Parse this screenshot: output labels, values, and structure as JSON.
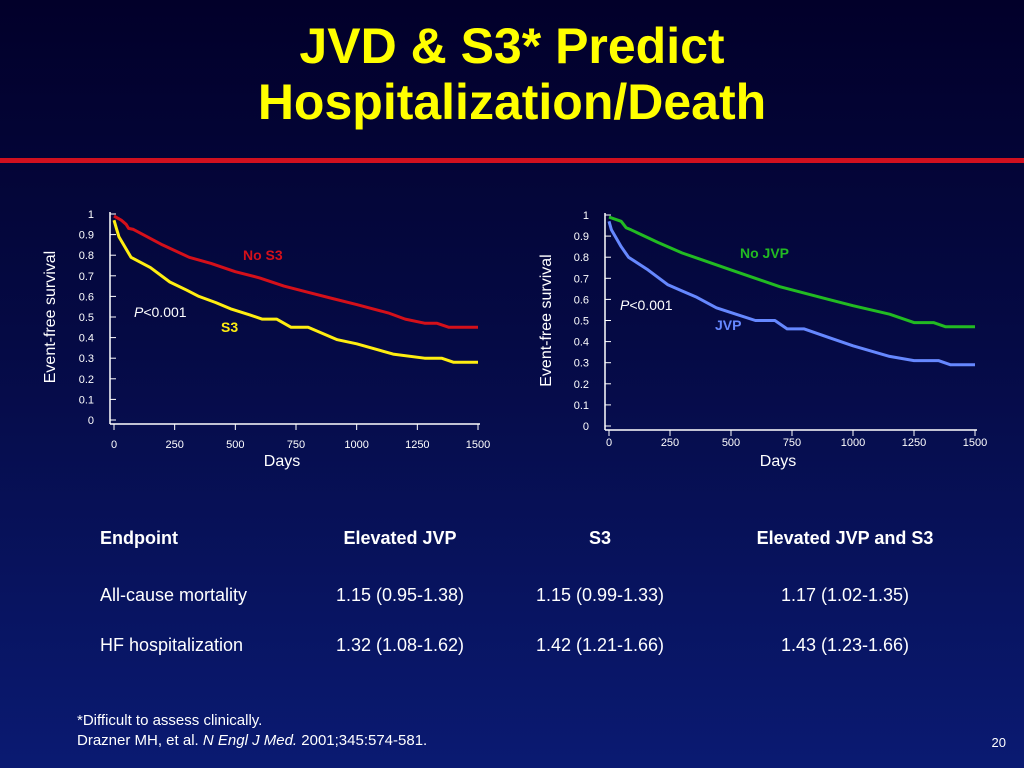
{
  "title_line1": "JVD & S3* Predict",
  "title_line2": "Hospitalization/Death",
  "chart_data": [
    {
      "type": "line",
      "xlabel": "Days",
      "ylabel": "Event-free survival",
      "xlim": [
        0,
        1500
      ],
      "ylim": [
        0,
        1
      ],
      "xticks": [
        "0",
        "250",
        "500",
        "750",
        "1000",
        "1250",
        "1500"
      ],
      "yticks": [
        "0",
        "0.1",
        "0.2",
        "0.3",
        "0.4",
        "0.5",
        "0.6",
        "0.7",
        "0.8",
        "0.9",
        "1"
      ],
      "annotation": "P<0.001",
      "series": [
        {
          "name": "No S3",
          "color": "#d4101a",
          "x": [
            0,
            30,
            50,
            60,
            80,
            200,
            310,
            400,
            500,
            600,
            700,
            800,
            900,
            1000,
            1130,
            1200,
            1280,
            1330,
            1380,
            1450,
            1500
          ],
          "y": [
            0.99,
            0.97,
            0.95,
            0.93,
            0.925,
            0.85,
            0.79,
            0.76,
            0.72,
            0.69,
            0.65,
            0.62,
            0.59,
            0.56,
            0.52,
            0.49,
            0.47,
            0.47,
            0.45,
            0.45,
            0.45
          ]
        },
        {
          "name": "S3",
          "color": "#ffee11",
          "x": [
            0,
            10,
            20,
            40,
            70,
            150,
            230,
            300,
            350,
            420,
            480,
            560,
            610,
            670,
            730,
            800,
            920,
            1000,
            1150,
            1280,
            1350,
            1400,
            1450,
            1500
          ],
          "y": [
            0.97,
            0.93,
            0.89,
            0.85,
            0.79,
            0.74,
            0.67,
            0.63,
            0.6,
            0.57,
            0.54,
            0.51,
            0.49,
            0.49,
            0.45,
            0.45,
            0.39,
            0.37,
            0.32,
            0.3,
            0.3,
            0.28,
            0.28,
            0.28
          ]
        }
      ]
    },
    {
      "type": "line",
      "xlabel": "Days",
      "ylabel": "Event-free survival",
      "xlim": [
        0,
        1500
      ],
      "ylim": [
        0,
        1
      ],
      "xticks": [
        "0",
        "250",
        "500",
        "750",
        "1000",
        "1250",
        "1500"
      ],
      "yticks": [
        "0",
        "0.1",
        "0.2",
        "0.3",
        "0.4",
        "0.5",
        "0.6",
        "0.7",
        "0.8",
        "0.9",
        "1"
      ],
      "annotation": "P<0.001",
      "series": [
        {
          "name": "No JVP",
          "color": "#22bb22",
          "x": [
            0,
            50,
            70,
            90,
            200,
            300,
            400,
            500,
            600,
            700,
            800,
            900,
            1000,
            1150,
            1250,
            1330,
            1380,
            1440,
            1500
          ],
          "y": [
            0.99,
            0.97,
            0.94,
            0.93,
            0.87,
            0.82,
            0.78,
            0.74,
            0.7,
            0.66,
            0.63,
            0.6,
            0.57,
            0.53,
            0.49,
            0.49,
            0.47,
            0.47,
            0.47
          ]
        },
        {
          "name": "JVP",
          "color": "#6688ff",
          "x": [
            0,
            10,
            30,
            50,
            80,
            160,
            240,
            300,
            360,
            440,
            520,
            600,
            680,
            730,
            800,
            900,
            1000,
            1150,
            1250,
            1350,
            1400,
            1450,
            1500
          ],
          "y": [
            0.97,
            0.93,
            0.89,
            0.85,
            0.8,
            0.74,
            0.67,
            0.64,
            0.61,
            0.56,
            0.53,
            0.5,
            0.5,
            0.46,
            0.46,
            0.42,
            0.38,
            0.33,
            0.31,
            0.31,
            0.29,
            0.29,
            0.29
          ]
        }
      ]
    }
  ],
  "table": {
    "headers": [
      "Endpoint",
      "Elevated JVP",
      "S3",
      "Elevated JVP and S3"
    ],
    "rows": [
      [
        "All-cause mortality",
        "1.15 (0.95-1.38)",
        "1.15 (0.99-1.33)",
        "1.17 (1.02-1.35)"
      ],
      [
        "HF hospitalization",
        "1.32 (1.08-1.62)",
        "1.42 (1.21-1.66)",
        "1.43 (1.23-1.66)"
      ]
    ]
  },
  "footnote_line1": "*Difficult to assess clinically.",
  "footnote_authors": "Drazner MH, et al. ",
  "footnote_journal": "N Engl J Med.",
  "footnote_citation": " 2001;345:574-581.",
  "page_number": "20"
}
